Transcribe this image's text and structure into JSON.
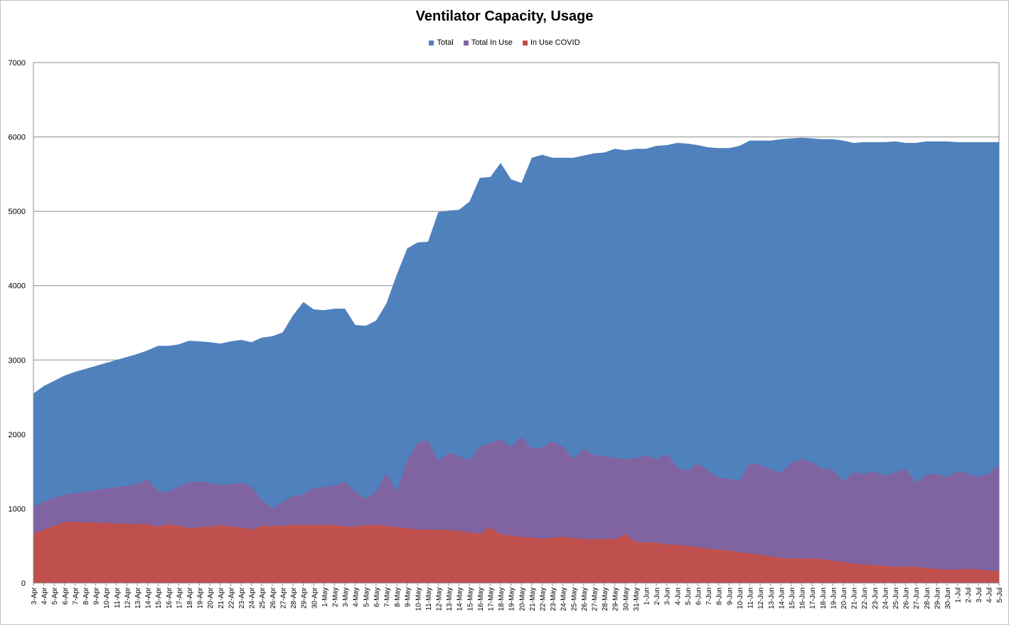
{
  "chart_data": {
    "type": "area",
    "title": "Ventilator Capacity, Usage",
    "xlabel": "",
    "ylabel": "",
    "ylim": [
      0,
      7000
    ],
    "yticks": [
      0,
      1000,
      2000,
      3000,
      4000,
      5000,
      6000,
      7000
    ],
    "grid": true,
    "legend_position": "top-center",
    "categories": [
      "3-Apr",
      "4-Apr",
      "5-Apr",
      "6-Apr",
      "7-Apr",
      "8-Apr",
      "9-Apr",
      "10-Apr",
      "11-Apr",
      "12-Apr",
      "13-Apr",
      "14-Apr",
      "15-Apr",
      "16-Apr",
      "17-Apr",
      "18-Apr",
      "19-Apr",
      "20-Apr",
      "21-Apr",
      "22-Apr",
      "23-Apr",
      "24-Apr",
      "25-Apr",
      "26-Apr",
      "27-Apr",
      "28-Apr",
      "29-Apr",
      "30-Apr",
      "1-May",
      "2-May",
      "3-May",
      "4-May",
      "5-May",
      "6-May",
      "7-May",
      "8-May",
      "9-May",
      "10-May",
      "11-May",
      "12-May",
      "13-May",
      "14-May",
      "15-May",
      "16-May",
      "17-May",
      "18-May",
      "19-May",
      "20-May",
      "21-May",
      "22-May",
      "23-May",
      "24-May",
      "25-May",
      "26-May",
      "27-May",
      "28-May",
      "29-May",
      "30-May",
      "31-May",
      "1-Jun",
      "2-Jun",
      "3-Jun",
      "4-Jun",
      "5-Jun",
      "6-Jun",
      "7-Jun",
      "8-Jun",
      "9-Jun",
      "10-Jun",
      "11-Jun",
      "12-Jun",
      "13-Jun",
      "14-Jun",
      "15-Jun",
      "16-Jun",
      "17-Jun",
      "18-Jun",
      "19-Jun",
      "20-Jun",
      "21-Jun",
      "22-Jun",
      "23-Jun",
      "24-Jun",
      "25-Jun",
      "26-Jun",
      "27-Jun",
      "28-Jun",
      "29-Jun",
      "30-Jun",
      "1-Jul",
      "2-Jul",
      "3-Jul",
      "4-Jul",
      "5-Jul"
    ],
    "series": [
      {
        "name": "Total",
        "color": "#4f81bd",
        "values": [
          2550,
          2650,
          2720,
          2790,
          2840,
          2880,
          2920,
          2960,
          3000,
          3040,
          3080,
          3130,
          3190,
          3190,
          3210,
          3260,
          3250,
          3240,
          3220,
          3250,
          3270,
          3240,
          3300,
          3320,
          3370,
          3600,
          3780,
          3680,
          3670,
          3690,
          3690,
          3470,
          3460,
          3530,
          3760,
          4150,
          4500,
          4580,
          4590,
          4990,
          5010,
          5020,
          5130,
          5450,
          5460,
          5650,
          5430,
          5380,
          5720,
          5760,
          5720,
          5720,
          5720,
          5750,
          5780,
          5790,
          5840,
          5820,
          5840,
          5840,
          5880,
          5890,
          5920,
          5910,
          5890,
          5860,
          5850,
          5850,
          5880,
          5950,
          5950,
          5950,
          5970,
          5980,
          5990,
          5980,
          5970,
          5970,
          5950,
          5920,
          5930,
          5930,
          5930,
          5940,
          5920,
          5920,
          5940,
          5940,
          5940,
          5930,
          5930,
          5930,
          5930,
          5930
        ]
      },
      {
        "name": "Total In Use",
        "color": "#8064a2",
        "values": [
          1030,
          1090,
          1150,
          1190,
          1210,
          1230,
          1250,
          1270,
          1290,
          1310,
          1330,
          1400,
          1230,
          1230,
          1300,
          1360,
          1370,
          1350,
          1320,
          1330,
          1350,
          1300,
          1110,
          1000,
          1090,
          1170,
          1190,
          1280,
          1290,
          1320,
          1360,
          1230,
          1130,
          1230,
          1480,
          1230,
          1640,
          1890,
          1920,
          1650,
          1750,
          1710,
          1650,
          1840,
          1880,
          1940,
          1830,
          1970,
          1810,
          1820,
          1910,
          1840,
          1670,
          1810,
          1720,
          1710,
          1680,
          1670,
          1680,
          1720,
          1660,
          1740,
          1550,
          1510,
          1610,
          1510,
          1420,
          1400,
          1380,
          1620,
          1590,
          1530,
          1480,
          1620,
          1670,
          1620,
          1540,
          1520,
          1370,
          1490,
          1470,
          1500,
          1440,
          1490,
          1540,
          1340,
          1460,
          1470,
          1420,
          1510,
          1470,
          1430,
          1470,
          1590
        ]
      },
      {
        "name": "In Use COVID",
        "color": "#c0504d",
        "values": [
          660,
          720,
          770,
          820,
          820,
          820,
          810,
          810,
          800,
          800,
          790,
          790,
          760,
          790,
          770,
          740,
          750,
          760,
          780,
          760,
          750,
          720,
          770,
          770,
          770,
          780,
          780,
          780,
          780,
          780,
          760,
          760,
          780,
          780,
          770,
          750,
          740,
          720,
          720,
          720,
          710,
          700,
          680,
          660,
          750,
          660,
          640,
          620,
          610,
          600,
          610,
          620,
          610,
          590,
          590,
          590,
          590,
          660,
          550,
          550,
          540,
          520,
          510,
          500,
          480,
          460,
          450,
          440,
          410,
          400,
          380,
          360,
          340,
          330,
          330,
          330,
          320,
          300,
          280,
          260,
          250,
          240,
          230,
          220,
          220,
          220,
          200,
          190,
          180,
          180,
          190,
          180,
          170,
          160
        ]
      }
    ]
  }
}
